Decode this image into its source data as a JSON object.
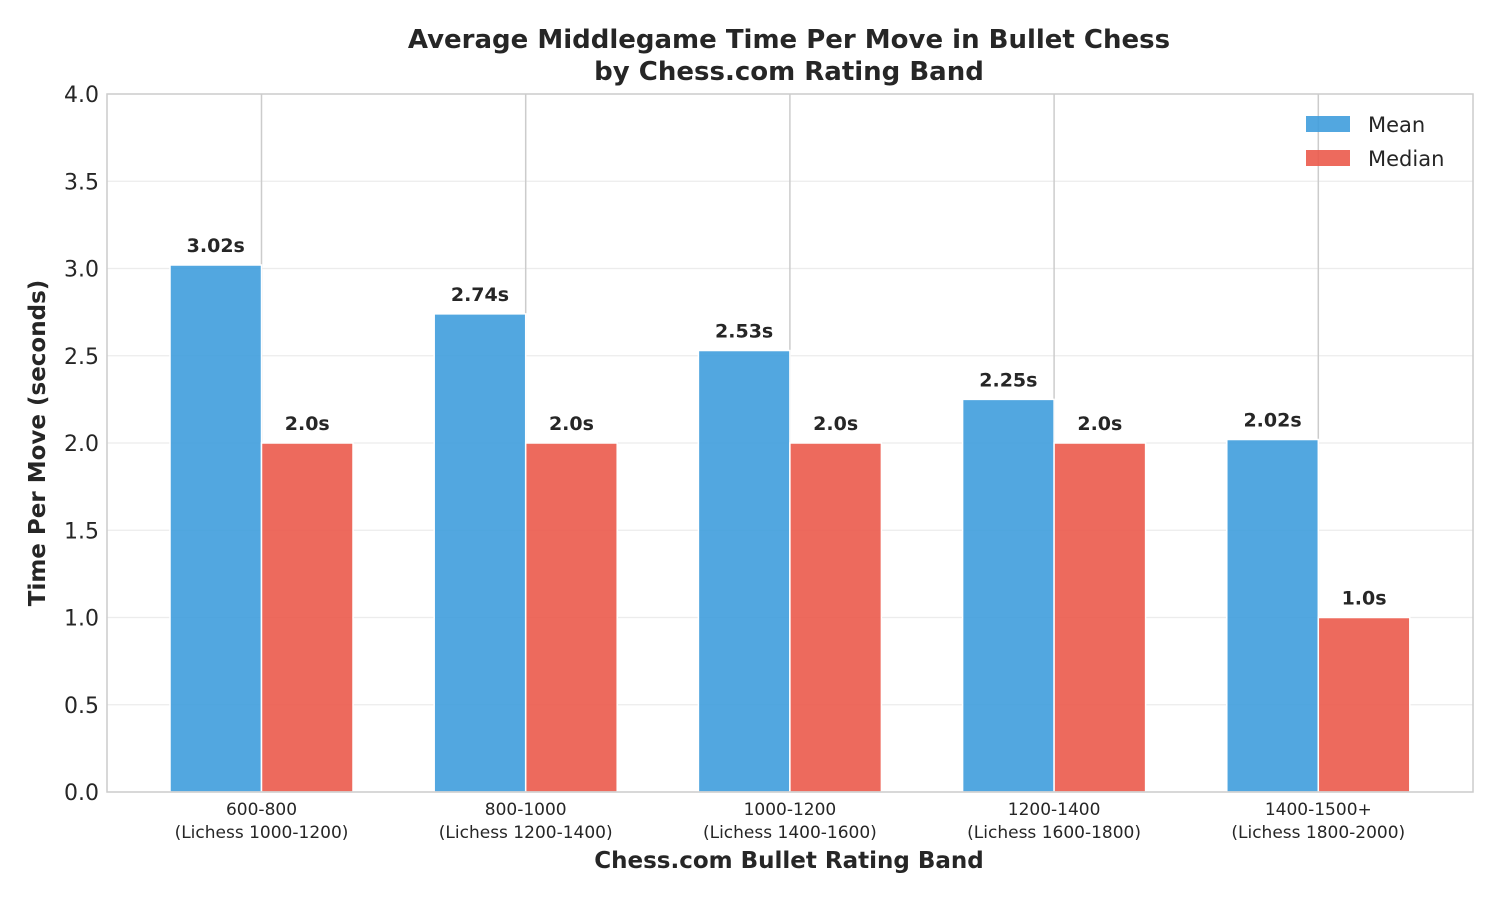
{
  "chart_data": {
    "type": "bar",
    "title": [
      "Average Middlegame Time Per Move in Bullet Chess",
      "by Chess.com Rating Band"
    ],
    "xlabel": "Chess.com Bullet Rating Band",
    "ylabel": "Time Per Move (seconds)",
    "ylim": [
      0,
      4.0
    ],
    "yticks": [
      0.0,
      0.5,
      1.0,
      1.5,
      2.0,
      2.5,
      3.0,
      3.5,
      4.0
    ],
    "ytick_labels": [
      "0.0",
      "0.5",
      "1.0",
      "1.5",
      "2.0",
      "2.5",
      "3.0",
      "3.5",
      "4.0"
    ],
    "categories": [
      [
        "600-800",
        "(Lichess 1000-1200)"
      ],
      [
        "800-1000",
        "(Lichess 1200-1400)"
      ],
      [
        "1000-1200",
        "(Lichess 1400-1600)"
      ],
      [
        "1200-1400",
        "(Lichess 1600-1800)"
      ],
      [
        "1400-1500+",
        "(Lichess 1800-2000)"
      ]
    ],
    "series": [
      {
        "name": "Mean",
        "color": "#3f9ddd",
        "values": [
          3.02,
          2.74,
          2.53,
          2.25,
          2.02
        ],
        "labels": [
          "3.02s",
          "2.74s",
          "2.53s",
          "2.25s",
          "2.02s"
        ]
      },
      {
        "name": "Median",
        "color": "#eb5a4b",
        "values": [
          2.0,
          2.0,
          2.0,
          2.0,
          1.0
        ],
        "labels": [
          "2.0s",
          "2.0s",
          "2.0s",
          "2.0s",
          "1.0s"
        ]
      }
    ],
    "grid": true,
    "legend_position": "top-right"
  }
}
